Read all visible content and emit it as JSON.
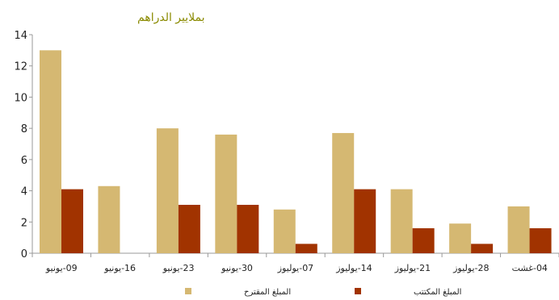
{
  "chart_data": {
    "type": "bar",
    "unit_label": "بملايير الدراهم",
    "categories": [
      "09-يونيو",
      "16-يونيو",
      "23-يونيو",
      "30-يونيو",
      "07-يوليوز",
      "14-يوليوز",
      "21-يوليوز",
      "28-يوليوز",
      "04-غشت"
    ],
    "series": [
      {
        "name": "المبلغ المقترح",
        "color": "#d5b872",
        "values": [
          13,
          4.3,
          8,
          7.6,
          2.8,
          7.7,
          4.1,
          1.9,
          3
        ]
      },
      {
        "name": "المبلغ المكتتب",
        "color": "#a13300",
        "values": [
          4.1,
          null,
          3.1,
          3.1,
          0.6,
          4.1,
          1.6,
          0.6,
          1.6
        ]
      }
    ],
    "ylim": [
      0,
      14
    ],
    "yticks": [
      0,
      2,
      4,
      6,
      8,
      10,
      12,
      14
    ],
    "grid": false,
    "legend_position": "bottom"
  }
}
